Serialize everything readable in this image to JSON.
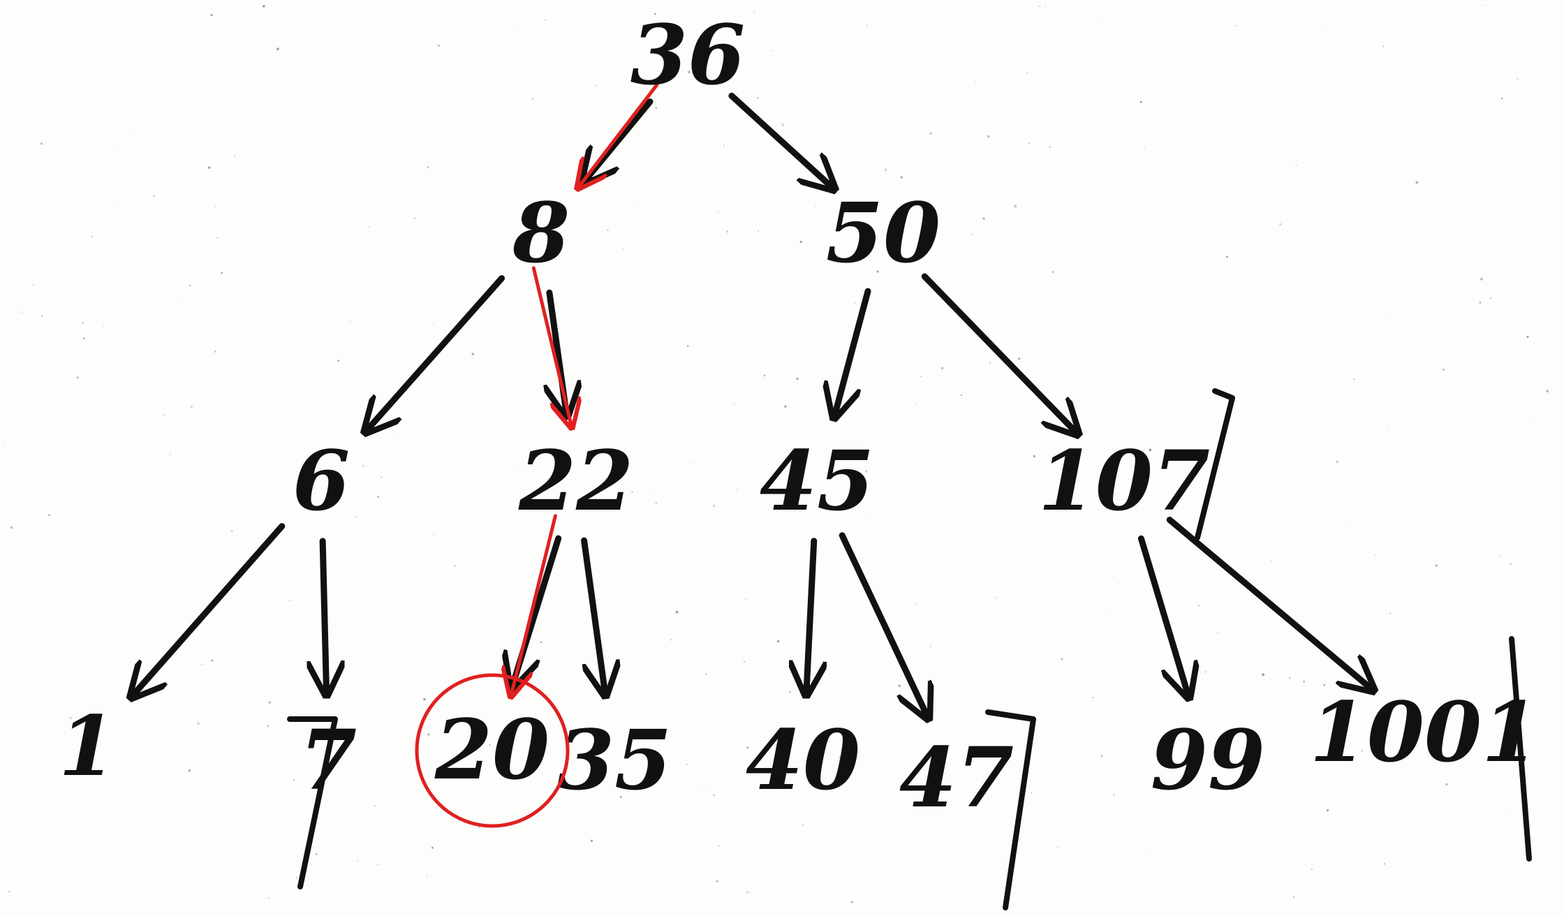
{
  "tree": {
    "nodes": [
      {
        "id": "n36",
        "label": "36"
      },
      {
        "id": "n8",
        "label": "8"
      },
      {
        "id": "n50",
        "label": "50"
      },
      {
        "id": "n6",
        "label": "6"
      },
      {
        "id": "n22",
        "label": "22"
      },
      {
        "id": "n45",
        "label": "45"
      },
      {
        "id": "n107",
        "label": "107"
      },
      {
        "id": "n1",
        "label": "1"
      },
      {
        "id": "n7",
        "label": "7"
      },
      {
        "id": "n20",
        "label": "20"
      },
      {
        "id": "n35",
        "label": "35"
      },
      {
        "id": "n40",
        "label": "40"
      },
      {
        "id": "n47",
        "label": "47"
      },
      {
        "id": "n99",
        "label": "99"
      },
      {
        "id": "n1001",
        "label": "1001"
      }
    ],
    "edges": [
      [
        "n36",
        "n8"
      ],
      [
        "n36",
        "n50"
      ],
      [
        "n8",
        "n6"
      ],
      [
        "n8",
        "n22"
      ],
      [
        "n50",
        "n45"
      ],
      [
        "n50",
        "n107"
      ],
      [
        "n6",
        "n1"
      ],
      [
        "n6",
        "n7"
      ],
      [
        "n22",
        "n20"
      ],
      [
        "n22",
        "n35"
      ],
      [
        "n45",
        "n40"
      ],
      [
        "n45",
        "n47"
      ],
      [
        "n107",
        "n99"
      ],
      [
        "n107",
        "n1001"
      ]
    ],
    "search_path": [
      "n36",
      "n8",
      "n22",
      "n20"
    ],
    "found_node": "n20",
    "colors": {
      "ink": "#111111",
      "highlight": "#e02020"
    }
  }
}
